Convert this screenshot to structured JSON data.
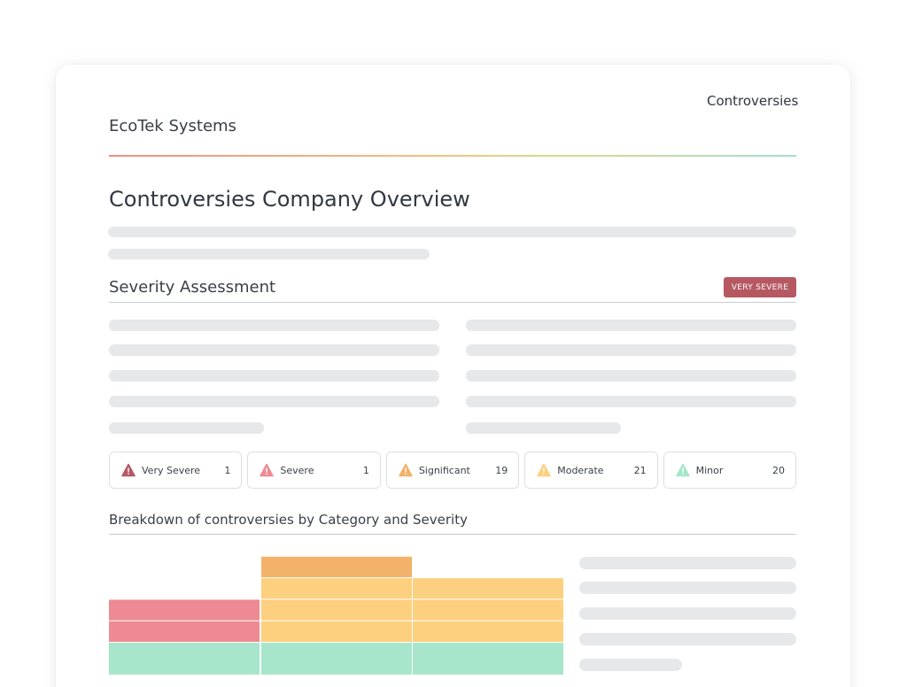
{
  "header": {
    "section": "Controversies",
    "company": "EcoTek Systems"
  },
  "page": {
    "title": "Controversies Company Overview"
  },
  "severity": {
    "heading": "Severity Assessment",
    "badge": "VERY SEVERE",
    "levels": [
      {
        "label": "Very Severe",
        "count": "1",
        "color": "#b65862"
      },
      {
        "label": "Severe",
        "count": "1",
        "color": "#ee8a93"
      },
      {
        "label": "Significant",
        "count": "19",
        "color": "#f3b26a"
      },
      {
        "label": "Moderate",
        "count": "21",
        "color": "#fdd07f"
      },
      {
        "label": "Minor",
        "count": "20",
        "color": "#a8e6cb"
      }
    ]
  },
  "breakdown": {
    "title": "Breakdown of controversies by Category and Severity"
  },
  "chart_data": {
    "type": "bar",
    "stacked": true,
    "categories": [
      "",
      "",
      ""
    ],
    "series": [
      {
        "color": "#a8e6cb",
        "values": [
          1,
          1,
          1
        ]
      },
      {
        "color": "#fdd07f",
        "values": [
          0,
          3,
          3
        ]
      },
      {
        "color": "#f3b26a",
        "values": [
          0,
          1,
          0
        ]
      },
      {
        "color": "#ee8a93",
        "values": [
          2,
          0,
          0
        ]
      }
    ]
  }
}
